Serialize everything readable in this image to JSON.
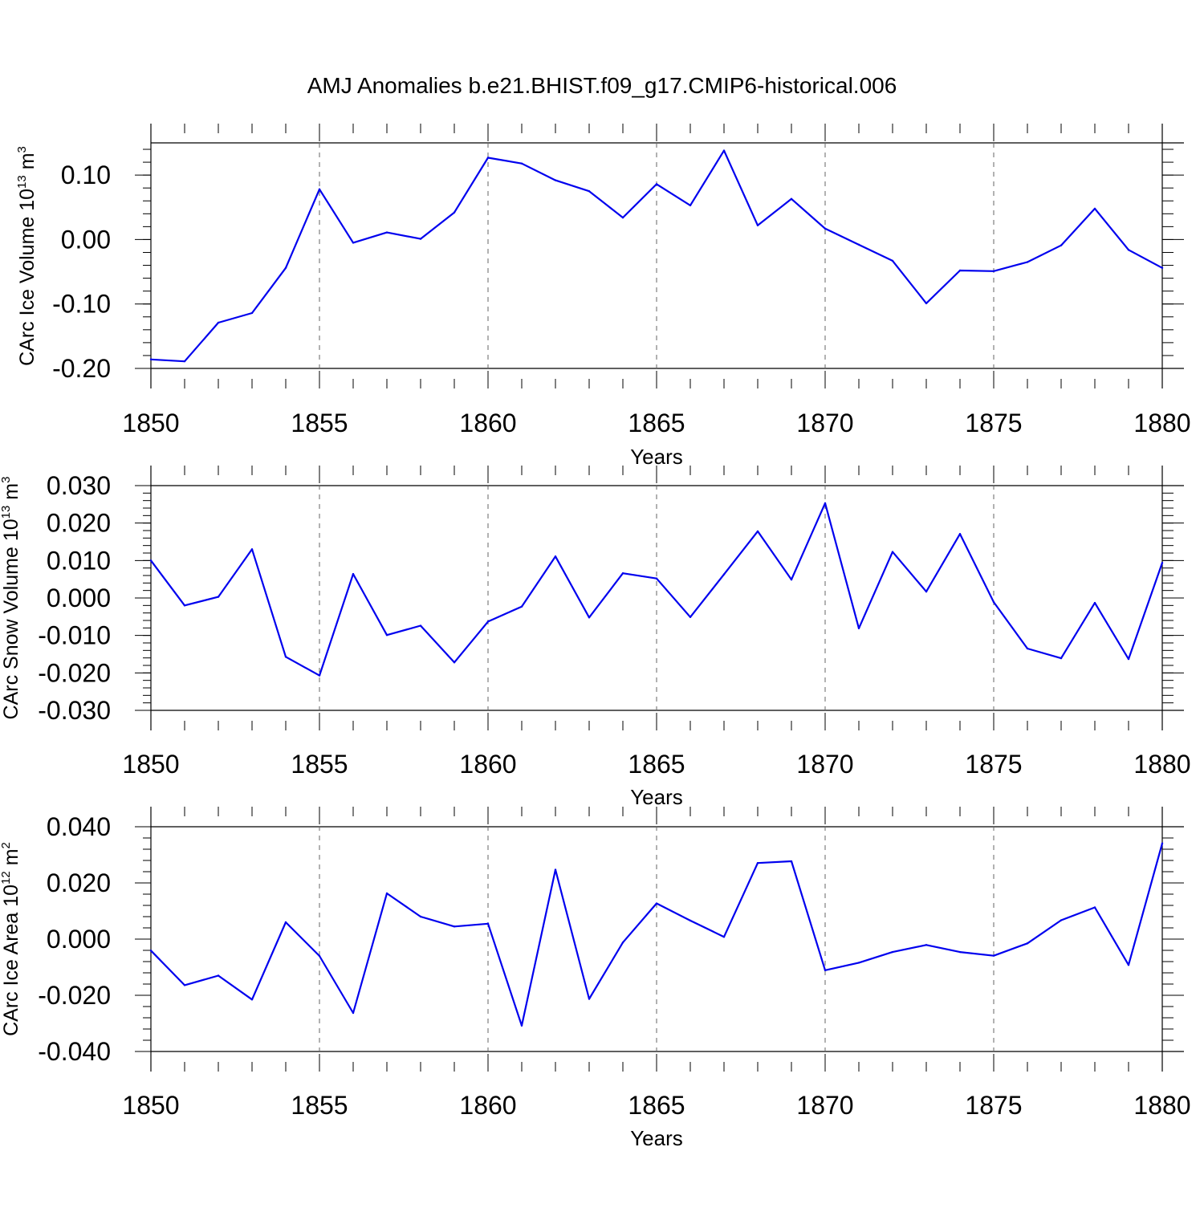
{
  "title": "AMJ Anomalies b.e21.BHIST.f09_g17.CMIP6-historical.006",
  "line_color": "#0000ee",
  "chart_data": [
    {
      "type": "line",
      "title": "AMJ Anomalies b.e21.BHIST.f09_g17.CMIP6-historical.006",
      "xlabel": "Years",
      "ylabel_main": "CArc Ice Volume 10",
      "ylabel_exp": "13",
      "ylabel_unit": " m",
      "ylabel_unit_exp": "3",
      "xlim": [
        1850,
        1880
      ],
      "ylim": [
        -0.2,
        0.15
      ],
      "grid": "vertical dashed at major x ticks",
      "x_ticks": [
        "1850",
        "1855",
        "1860",
        "1865",
        "1870",
        "1875",
        "1880"
      ],
      "y_ticks": [
        {
          "value": 0.1,
          "label": "0.10"
        },
        {
          "value": 0.0,
          "label": "0.00"
        },
        {
          "value": -0.1,
          "label": "-0.10"
        },
        {
          "value": -0.2,
          "label": "-0.20"
        }
      ],
      "y_minor_step": 0.02,
      "x": [
        1850,
        1851,
        1852,
        1853,
        1854,
        1855,
        1856,
        1857,
        1858,
        1859,
        1860,
        1861,
        1862,
        1863,
        1864,
        1865,
        1866,
        1867,
        1868,
        1869,
        1870,
        1871,
        1872,
        1873,
        1874,
        1875,
        1876,
        1877,
        1878,
        1879,
        1880
      ],
      "values": [
        -0.186,
        -0.189,
        -0.129,
        -0.114,
        -0.044,
        0.078,
        -0.005,
        0.011,
        0.001,
        0.042,
        0.127,
        0.118,
        0.092,
        0.075,
        0.034,
        0.086,
        0.053,
        0.138,
        0.022,
        0.063,
        0.017,
        -0.008,
        -0.033,
        -0.099,
        -0.048,
        -0.049,
        -0.035,
        -0.009,
        0.048,
        -0.016,
        -0.044
      ]
    },
    {
      "type": "line",
      "xlabel": "Years",
      "ylabel_main": "CArc Snow Volume 10",
      "ylabel_exp": "13",
      "ylabel_unit": " m",
      "ylabel_unit_exp": "3",
      "xlim": [
        1850,
        1880
      ],
      "ylim": [
        -0.03,
        0.03
      ],
      "grid": "vertical dashed at major x ticks",
      "x_ticks": [
        "1850",
        "1855",
        "1860",
        "1865",
        "1870",
        "1875",
        "1880"
      ],
      "y_ticks": [
        {
          "value": 0.03,
          "label": "0.030"
        },
        {
          "value": 0.02,
          "label": "0.020"
        },
        {
          "value": 0.01,
          "label": "0.010"
        },
        {
          "value": 0.0,
          "label": "0.000"
        },
        {
          "value": -0.01,
          "label": "-0.010"
        },
        {
          "value": -0.02,
          "label": "-0.020"
        },
        {
          "value": -0.03,
          "label": "-0.030"
        }
      ],
      "y_minor_step": 0.002,
      "x": [
        1850,
        1851,
        1852,
        1853,
        1854,
        1855,
        1856,
        1857,
        1858,
        1859,
        1860,
        1861,
        1862,
        1863,
        1864,
        1865,
        1866,
        1867,
        1868,
        1869,
        1870,
        1871,
        1872,
        1873,
        1874,
        1875,
        1876,
        1877,
        1878,
        1879,
        1880
      ],
      "values": [
        0.01,
        -0.002,
        0.0003,
        0.013,
        -0.0157,
        -0.0207,
        0.0064,
        -0.0099,
        -0.0074,
        -0.0172,
        -0.0063,
        -0.0023,
        0.0111,
        -0.0052,
        0.0066,
        0.0052,
        -0.0051,
        0.0063,
        0.0178,
        0.0049,
        0.0253,
        -0.0081,
        0.0123,
        0.0017,
        0.0171,
        -0.0011,
        -0.0135,
        -0.0161,
        -0.0013,
        -0.0163,
        0.0094
      ]
    },
    {
      "type": "line",
      "xlabel": "Years",
      "ylabel_main": "CArc Ice Area 10",
      "ylabel_exp": "12",
      "ylabel_unit": " m",
      "ylabel_unit_exp": "2",
      "xlim": [
        1850,
        1880
      ],
      "ylim": [
        -0.04,
        0.04
      ],
      "grid": "vertical dashed at major x ticks",
      "x_ticks": [
        "1850",
        "1855",
        "1860",
        "1865",
        "1870",
        "1875",
        "1880"
      ],
      "y_ticks": [
        {
          "value": 0.04,
          "label": "0.040"
        },
        {
          "value": 0.02,
          "label": "0.020"
        },
        {
          "value": 0.0,
          "label": "0.000"
        },
        {
          "value": -0.02,
          "label": "-0.020"
        },
        {
          "value": -0.04,
          "label": "-0.040"
        }
      ],
      "y_minor_step": 0.004,
      "x": [
        1850,
        1851,
        1852,
        1853,
        1854,
        1855,
        1856,
        1857,
        1858,
        1859,
        1860,
        1861,
        1862,
        1863,
        1864,
        1865,
        1866,
        1867,
        1868,
        1869,
        1870,
        1871,
        1872,
        1873,
        1874,
        1875,
        1876,
        1877,
        1878,
        1879,
        1880
      ],
      "values": [
        -0.0041,
        -0.0164,
        -0.013,
        -0.0215,
        0.006,
        -0.006,
        -0.0263,
        0.0163,
        0.008,
        0.0045,
        0.0055,
        -0.0308,
        0.0247,
        -0.0213,
        -0.0012,
        0.0127,
        0.0066,
        0.0008,
        0.0271,
        0.0277,
        -0.0111,
        -0.0084,
        -0.0046,
        -0.0021,
        -0.0046,
        -0.0059,
        -0.0015,
        0.0067,
        0.0113,
        -0.0092,
        0.0341
      ]
    }
  ]
}
